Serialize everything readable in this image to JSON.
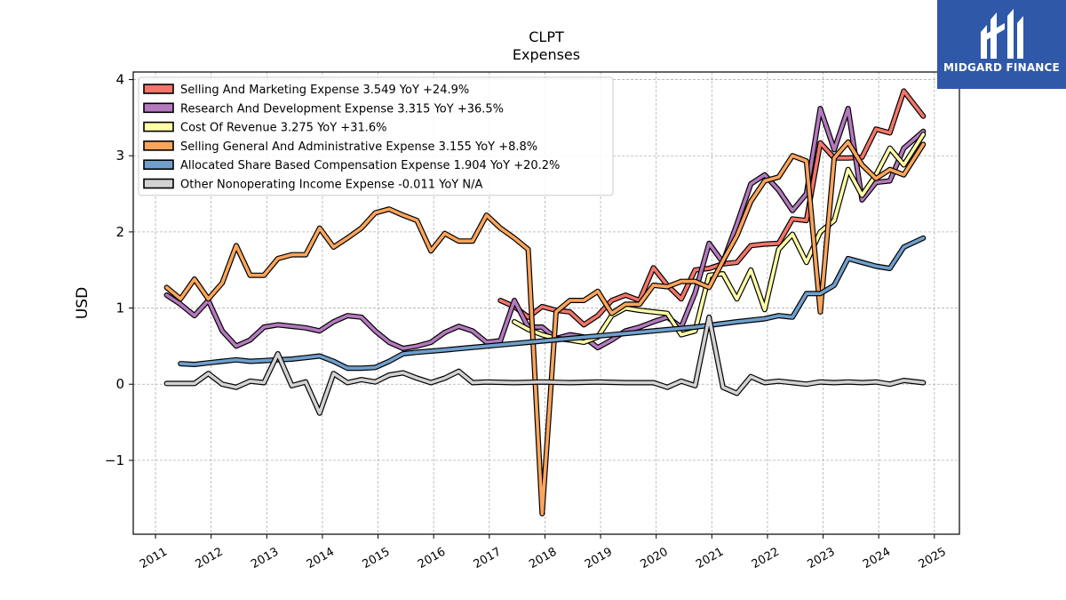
{
  "brand": {
    "name": "MIDGARD FINANCE",
    "background": "#2f58a8"
  },
  "chart_data": {
    "type": "line",
    "title": "CLPT",
    "subtitle": "Expenses",
    "ylabel": "USD",
    "xlabel": "",
    "x_ticks": [
      2011,
      2012,
      2013,
      2014,
      2015,
      2016,
      2017,
      2018,
      2019,
      2020,
      2021,
      2022,
      2023,
      2024,
      2025
    ],
    "y_ticks": [
      4,
      3,
      2,
      1,
      0,
      -1
    ],
    "y_tick_labels": [
      "4",
      "3",
      "2",
      "1",
      "0",
      "−1"
    ],
    "xlim": [
      2010.6,
      2025.45
    ],
    "ylim": [
      -1.97,
      4.1
    ],
    "grid": true,
    "legend_position": "top-left",
    "series": [
      {
        "name": "Selling And Marketing Expense",
        "legend_label": "Selling And Marketing Expense  3.549 YoY +24.9%",
        "color": "#f4756a",
        "points": [
          [
            2017.2,
            1.1
          ],
          [
            2017.45,
            1.02
          ],
          [
            2017.7,
            0.88
          ],
          [
            2017.95,
            1.02
          ],
          [
            2018.2,
            0.97
          ],
          [
            2018.45,
            0.95
          ],
          [
            2018.7,
            0.78
          ],
          [
            2018.95,
            0.9
          ],
          [
            2019.2,
            1.1
          ],
          [
            2019.45,
            1.17
          ],
          [
            2019.7,
            1.1
          ],
          [
            2019.95,
            1.53
          ],
          [
            2020.2,
            1.3
          ],
          [
            2020.45,
            1.12
          ],
          [
            2020.7,
            1.5
          ],
          [
            2020.95,
            1.52
          ],
          [
            2021.2,
            1.58
          ],
          [
            2021.45,
            1.6
          ],
          [
            2021.7,
            1.82
          ],
          [
            2021.95,
            1.84
          ],
          [
            2022.2,
            1.85
          ],
          [
            2022.45,
            2.17
          ],
          [
            2022.7,
            2.15
          ],
          [
            2022.95,
            3.17
          ],
          [
            2023.2,
            2.97
          ],
          [
            2023.45,
            2.97
          ],
          [
            2023.7,
            2.98
          ],
          [
            2023.95,
            3.35
          ],
          [
            2024.2,
            3.3
          ],
          [
            2024.45,
            3.85
          ],
          [
            2024.8,
            3.52
          ]
        ]
      },
      {
        "name": "Research And Development Expense",
        "legend_label": "Research And Development Expense  3.315 YoY +36.5%",
        "color": "#b479be",
        "points": [
          [
            2011.2,
            1.17
          ],
          [
            2011.45,
            1.05
          ],
          [
            2011.7,
            0.9
          ],
          [
            2011.95,
            1.1
          ],
          [
            2012.2,
            0.7
          ],
          [
            2012.45,
            0.5
          ],
          [
            2012.7,
            0.58
          ],
          [
            2012.95,
            0.75
          ],
          [
            2013.2,
            0.78
          ],
          [
            2013.45,
            0.76
          ],
          [
            2013.7,
            0.74
          ],
          [
            2013.95,
            0.7
          ],
          [
            2014.2,
            0.82
          ],
          [
            2014.45,
            0.9
          ],
          [
            2014.7,
            0.88
          ],
          [
            2014.95,
            0.7
          ],
          [
            2015.2,
            0.55
          ],
          [
            2015.45,
            0.47
          ],
          [
            2015.7,
            0.5
          ],
          [
            2015.95,
            0.55
          ],
          [
            2016.2,
            0.68
          ],
          [
            2016.45,
            0.76
          ],
          [
            2016.7,
            0.7
          ],
          [
            2016.95,
            0.55
          ],
          [
            2017.2,
            0.57
          ],
          [
            2017.45,
            1.1
          ],
          [
            2017.7,
            0.75
          ],
          [
            2017.95,
            0.75
          ],
          [
            2018.2,
            0.6
          ],
          [
            2018.45,
            0.65
          ],
          [
            2018.7,
            0.62
          ],
          [
            2018.95,
            0.48
          ],
          [
            2019.2,
            0.58
          ],
          [
            2019.45,
            0.7
          ],
          [
            2019.7,
            0.75
          ],
          [
            2019.95,
            0.82
          ],
          [
            2020.2,
            0.88
          ],
          [
            2020.45,
            0.75
          ],
          [
            2020.7,
            1.2
          ],
          [
            2020.95,
            1.85
          ],
          [
            2021.2,
            1.6
          ],
          [
            2021.45,
            2.1
          ],
          [
            2021.7,
            2.63
          ],
          [
            2021.95,
            2.75
          ],
          [
            2022.2,
            2.55
          ],
          [
            2022.45,
            2.28
          ],
          [
            2022.7,
            2.5
          ],
          [
            2022.95,
            3.62
          ],
          [
            2023.2,
            3.08
          ],
          [
            2023.45,
            3.62
          ],
          [
            2023.7,
            2.42
          ],
          [
            2023.95,
            2.65
          ],
          [
            2024.2,
            2.67
          ],
          [
            2024.45,
            3.1
          ],
          [
            2024.8,
            3.32
          ]
        ]
      },
      {
        "name": "Cost Of Revenue",
        "legend_label": "Cost Of Revenue  3.275 YoY +31.6%",
        "color": "#ffffa8",
        "points": [
          [
            2017.45,
            0.82
          ],
          [
            2017.7,
            0.72
          ],
          [
            2017.95,
            0.65
          ],
          [
            2018.2,
            0.6
          ],
          [
            2018.45,
            0.58
          ],
          [
            2018.7,
            0.55
          ],
          [
            2018.95,
            0.62
          ],
          [
            2019.2,
            0.9
          ],
          [
            2019.45,
            1.0
          ],
          [
            2019.7,
            0.97
          ],
          [
            2019.95,
            0.95
          ],
          [
            2020.2,
            0.93
          ],
          [
            2020.45,
            0.65
          ],
          [
            2020.7,
            0.7
          ],
          [
            2020.95,
            1.43
          ],
          [
            2021.2,
            1.45
          ],
          [
            2021.45,
            1.12
          ],
          [
            2021.7,
            1.5
          ],
          [
            2021.95,
            0.98
          ],
          [
            2022.2,
            1.77
          ],
          [
            2022.45,
            1.97
          ],
          [
            2022.7,
            1.6
          ],
          [
            2022.95,
            2.0
          ],
          [
            2023.2,
            2.15
          ],
          [
            2023.45,
            2.82
          ],
          [
            2023.7,
            2.48
          ],
          [
            2023.95,
            2.75
          ],
          [
            2024.2,
            3.1
          ],
          [
            2024.45,
            2.88
          ],
          [
            2024.8,
            3.28
          ]
        ]
      },
      {
        "name": "Selling General And Administrative Expense",
        "legend_label": "Selling General And Administrative Expense  3.155 YoY +8.8%",
        "color": "#fba55c",
        "points": [
          [
            2011.2,
            1.27
          ],
          [
            2011.45,
            1.12
          ],
          [
            2011.7,
            1.38
          ],
          [
            2011.95,
            1.12
          ],
          [
            2012.2,
            1.33
          ],
          [
            2012.45,
            1.82
          ],
          [
            2012.7,
            1.43
          ],
          [
            2012.95,
            1.43
          ],
          [
            2013.2,
            1.65
          ],
          [
            2013.45,
            1.7
          ],
          [
            2013.7,
            1.7
          ],
          [
            2013.95,
            2.05
          ],
          [
            2014.2,
            1.8
          ],
          [
            2014.45,
            1.92
          ],
          [
            2014.7,
            2.05
          ],
          [
            2014.95,
            2.25
          ],
          [
            2015.2,
            2.3
          ],
          [
            2015.45,
            2.22
          ],
          [
            2015.7,
            2.15
          ],
          [
            2015.95,
            1.75
          ],
          [
            2016.2,
            1.98
          ],
          [
            2016.45,
            1.88
          ],
          [
            2016.7,
            1.88
          ],
          [
            2016.95,
            2.22
          ],
          [
            2017.2,
            2.05
          ],
          [
            2017.45,
            1.92
          ],
          [
            2017.7,
            1.77
          ],
          [
            2017.95,
            -1.7
          ],
          [
            2018.2,
            0.95
          ],
          [
            2018.45,
            1.1
          ],
          [
            2018.7,
            1.1
          ],
          [
            2018.95,
            1.22
          ],
          [
            2019.2,
            0.93
          ],
          [
            2019.45,
            1.05
          ],
          [
            2019.7,
            1.05
          ],
          [
            2019.95,
            1.3
          ],
          [
            2020.2,
            1.28
          ],
          [
            2020.45,
            1.35
          ],
          [
            2020.7,
            1.35
          ],
          [
            2020.95,
            1.27
          ],
          [
            2021.2,
            1.62
          ],
          [
            2021.45,
            1.95
          ],
          [
            2021.7,
            2.4
          ],
          [
            2021.95,
            2.67
          ],
          [
            2022.2,
            2.72
          ],
          [
            2022.45,
            3.0
          ],
          [
            2022.7,
            2.93
          ],
          [
            2022.95,
            0.95
          ],
          [
            2023.2,
            2.97
          ],
          [
            2023.45,
            3.18
          ],
          [
            2023.7,
            2.88
          ],
          [
            2023.95,
            2.7
          ],
          [
            2024.2,
            2.82
          ],
          [
            2024.45,
            2.75
          ],
          [
            2024.8,
            3.15
          ]
        ]
      },
      {
        "name": "Allocated Share Based Compensation Expense",
        "legend_label": "Allocated Share Based Compensation Expense  1.904 YoY +20.2%",
        "color": "#6f9fcd",
        "points": [
          [
            2011.45,
            0.27
          ],
          [
            2011.7,
            0.26
          ],
          [
            2011.95,
            0.28
          ],
          [
            2012.2,
            0.3
          ],
          [
            2012.45,
            0.32
          ],
          [
            2012.7,
            0.3
          ],
          [
            2012.95,
            0.31
          ],
          [
            2013.2,
            0.32
          ],
          [
            2013.45,
            0.33
          ],
          [
            2013.7,
            0.35
          ],
          [
            2013.95,
            0.37
          ],
          [
            2014.2,
            0.3
          ],
          [
            2014.45,
            0.21
          ],
          [
            2014.7,
            0.21
          ],
          [
            2014.95,
            0.22
          ],
          [
            2015.2,
            0.3
          ],
          [
            2015.45,
            0.4
          ],
          [
            2015.7,
            0.42
          ],
          [
            2016.2,
            0.45
          ],
          [
            2016.95,
            0.5
          ],
          [
            2017.7,
            0.55
          ],
          [
            2018.45,
            0.6
          ],
          [
            2019.2,
            0.65
          ],
          [
            2019.95,
            0.7
          ],
          [
            2020.7,
            0.75
          ],
          [
            2021.45,
            0.82
          ],
          [
            2021.95,
            0.86
          ],
          [
            2022.2,
            0.9
          ],
          [
            2022.45,
            0.88
          ],
          [
            2022.7,
            1.19
          ],
          [
            2022.95,
            1.19
          ],
          [
            2023.2,
            1.3
          ],
          [
            2023.45,
            1.65
          ],
          [
            2023.7,
            1.6
          ],
          [
            2023.95,
            1.55
          ],
          [
            2024.2,
            1.52
          ],
          [
            2024.45,
            1.8
          ],
          [
            2024.8,
            1.92
          ]
        ]
      },
      {
        "name": "Other Nonoperating Income Expense",
        "legend_label": "Other Nonoperating Income Expense  -0.011 YoY N/A",
        "color": "#d2d2d2",
        "points": [
          [
            2011.2,
            0.01
          ],
          [
            2011.45,
            0.01
          ],
          [
            2011.7,
            0.01
          ],
          [
            2011.95,
            0.14
          ],
          [
            2012.2,
            0.0
          ],
          [
            2012.45,
            -0.04
          ],
          [
            2012.7,
            0.04
          ],
          [
            2012.95,
            0.02
          ],
          [
            2013.2,
            0.4
          ],
          [
            2013.45,
            -0.02
          ],
          [
            2013.7,
            0.03
          ],
          [
            2013.95,
            -0.38
          ],
          [
            2014.2,
            0.14
          ],
          [
            2014.45,
            0.02
          ],
          [
            2014.7,
            0.06
          ],
          [
            2014.95,
            0.03
          ],
          [
            2015.2,
            0.12
          ],
          [
            2015.45,
            0.15
          ],
          [
            2015.7,
            0.08
          ],
          [
            2015.95,
            0.02
          ],
          [
            2016.2,
            0.08
          ],
          [
            2016.45,
            0.17
          ],
          [
            2016.7,
            0.02
          ],
          [
            2016.95,
            0.03
          ],
          [
            2017.45,
            0.02
          ],
          [
            2017.95,
            0.03
          ],
          [
            2018.45,
            0.02
          ],
          [
            2018.95,
            0.03
          ],
          [
            2019.45,
            0.02
          ],
          [
            2019.95,
            0.02
          ],
          [
            2020.2,
            -0.04
          ],
          [
            2020.45,
            0.04
          ],
          [
            2020.7,
            -0.02
          ],
          [
            2020.95,
            0.88
          ],
          [
            2021.2,
            -0.04
          ],
          [
            2021.45,
            -0.12
          ],
          [
            2021.7,
            0.1
          ],
          [
            2021.95,
            0.02
          ],
          [
            2022.2,
            0.04
          ],
          [
            2022.45,
            0.02
          ],
          [
            2022.7,
            0.0
          ],
          [
            2022.95,
            0.03
          ],
          [
            2023.2,
            0.02
          ],
          [
            2023.45,
            0.03
          ],
          [
            2023.7,
            0.02
          ],
          [
            2023.95,
            0.03
          ],
          [
            2024.2,
            0.0
          ],
          [
            2024.45,
            0.05
          ],
          [
            2024.8,
            0.02
          ]
        ]
      }
    ]
  }
}
